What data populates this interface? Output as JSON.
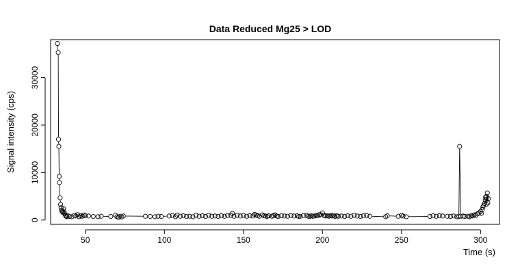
{
  "chart_data": {
    "type": "scatter",
    "title": "Data Reduced Mg25 > LOD",
    "xlabel": "Time (s)",
    "ylabel": "Signal intensity (cps)",
    "xlim": [
      28,
      312
    ],
    "ylim": [
      -900,
      38000
    ],
    "xticks": [
      50,
      100,
      150,
      200,
      250,
      300
    ],
    "yticks": [
      0,
      10000,
      20000,
      30000
    ],
    "grid": false,
    "marker": "open-circle",
    "series": [
      {
        "values": [
          [
            32.3,
            37200
          ],
          [
            32.8,
            35300
          ],
          [
            33.0,
            17000
          ],
          [
            33.2,
            15500
          ],
          [
            33.4,
            9200
          ],
          [
            33.6,
            7900
          ],
          [
            34.0,
            4700
          ],
          [
            34.3,
            3300
          ],
          [
            34.6,
            2600
          ],
          [
            35.0,
            2100
          ],
          [
            35.3,
            1800
          ],
          [
            35.7,
            1600
          ],
          [
            36.1,
            2400
          ],
          [
            36.5,
            1700
          ],
          [
            36.9,
            1300
          ],
          [
            37.4,
            1000
          ],
          [
            37.8,
            800
          ],
          [
            38.3,
            700
          ],
          [
            39,
            900
          ],
          [
            40,
            750
          ],
          [
            41.5,
            700
          ],
          [
            43,
            1000
          ],
          [
            44,
            850
          ],
          [
            45,
            1150
          ],
          [
            46,
            700
          ],
          [
            47,
            950
          ],
          [
            48,
            800
          ],
          [
            49,
            1050
          ],
          [
            50,
            900
          ],
          [
            52,
            850
          ],
          [
            55,
            750
          ],
          [
            58,
            700
          ],
          [
            60,
            800
          ],
          [
            66,
            750
          ],
          [
            69,
            1050
          ],
          [
            70,
            700
          ],
          [
            71,
            600
          ],
          [
            72,
            800
          ],
          [
            73,
            650
          ],
          [
            74,
            850
          ],
          [
            88,
            800
          ],
          [
            91,
            750
          ],
          [
            94,
            700
          ],
          [
            96,
            800
          ],
          [
            98,
            750
          ],
          [
            103,
            850
          ],
          [
            105,
            950
          ],
          [
            107,
            700
          ],
          [
            108,
            1050
          ],
          [
            110,
            800
          ],
          [
            112,
            900
          ],
          [
            114,
            750
          ],
          [
            116,
            800
          ],
          [
            118,
            700
          ],
          [
            120,
            1000
          ],
          [
            122,
            800
          ],
          [
            124,
            900
          ],
          [
            126,
            750
          ],
          [
            128,
            1000
          ],
          [
            130,
            800
          ],
          [
            132,
            850
          ],
          [
            134,
            750
          ],
          [
            136,
            900
          ],
          [
            138,
            800
          ],
          [
            140,
            950
          ],
          [
            142,
            1000
          ],
          [
            143,
            1400
          ],
          [
            144,
            800
          ],
          [
            146,
            1000
          ],
          [
            148,
            850
          ],
          [
            150,
            950
          ],
          [
            152,
            800
          ],
          [
            154,
            900
          ],
          [
            156,
            850
          ],
          [
            157,
            1200
          ],
          [
            158,
            1050
          ],
          [
            159,
            950
          ],
          [
            160,
            800
          ],
          [
            162,
            1100
          ],
          [
            163,
            900
          ],
          [
            164,
            850
          ],
          [
            165,
            750
          ],
          [
            166,
            900
          ],
          [
            168,
            800
          ],
          [
            169,
            950
          ],
          [
            170,
            1100
          ],
          [
            171,
            850
          ],
          [
            172,
            750
          ],
          [
            174,
            900
          ],
          [
            176,
            850
          ],
          [
            178,
            800
          ],
          [
            180,
            950
          ],
          [
            182,
            850
          ],
          [
            184,
            900
          ],
          [
            185,
            750
          ],
          [
            186,
            800
          ],
          [
            188,
            950
          ],
          [
            190,
            1000
          ],
          [
            191,
            800
          ],
          [
            192,
            750
          ],
          [
            193,
            900
          ],
          [
            194,
            800
          ],
          [
            195,
            850
          ],
          [
            196,
            1000
          ],
          [
            197,
            900
          ],
          [
            198,
            1150
          ],
          [
            199,
            1100
          ],
          [
            200,
            1500
          ],
          [
            201,
            1000
          ],
          [
            202,
            850
          ],
          [
            203,
            900
          ],
          [
            204,
            800
          ],
          [
            205,
            950
          ],
          [
            206,
            850
          ],
          [
            207,
            1000
          ],
          [
            208,
            750
          ],
          [
            209,
            900
          ],
          [
            210,
            800
          ],
          [
            212,
            850
          ],
          [
            214,
            750
          ],
          [
            216,
            900
          ],
          [
            218,
            800
          ],
          [
            220,
            1000
          ],
          [
            222,
            850
          ],
          [
            224,
            750
          ],
          [
            226,
            900
          ],
          [
            228,
            950
          ],
          [
            230,
            800
          ],
          [
            240,
            700
          ],
          [
            241,
            900
          ],
          [
            248,
            800
          ],
          [
            250,
            1000
          ],
          [
            251,
            850
          ],
          [
            253,
            700
          ],
          [
            268,
            750
          ],
          [
            270,
            900
          ],
          [
            272,
            800
          ],
          [
            274,
            900
          ],
          [
            276,
            850
          ],
          [
            279,
            800
          ],
          [
            281,
            750
          ],
          [
            283,
            850
          ],
          [
            285,
            700
          ],
          [
            286.3,
            750
          ],
          [
            286.8,
            15500
          ],
          [
            287.5,
            800
          ],
          [
            289,
            850
          ],
          [
            290,
            750
          ],
          [
            292,
            800
          ],
          [
            293,
            700
          ],
          [
            294,
            900
          ],
          [
            295,
            850
          ],
          [
            296,
            1100
          ],
          [
            297,
            1000
          ],
          [
            298,
            1300
          ],
          [
            299,
            1500
          ],
          [
            300,
            1800
          ],
          [
            300.5,
            1400
          ],
          [
            301,
            2200
          ],
          [
            301.5,
            2700
          ],
          [
            302,
            3100
          ],
          [
            302.5,
            3500
          ],
          [
            303,
            4200
          ],
          [
            303.2,
            4800
          ],
          [
            303.6,
            3300
          ],
          [
            304,
            4400
          ],
          [
            304.3,
            5700
          ],
          [
            304.6,
            3600
          ],
          [
            305,
            4500
          ],
          [
            303.8,
            5000
          ]
        ]
      }
    ]
  }
}
